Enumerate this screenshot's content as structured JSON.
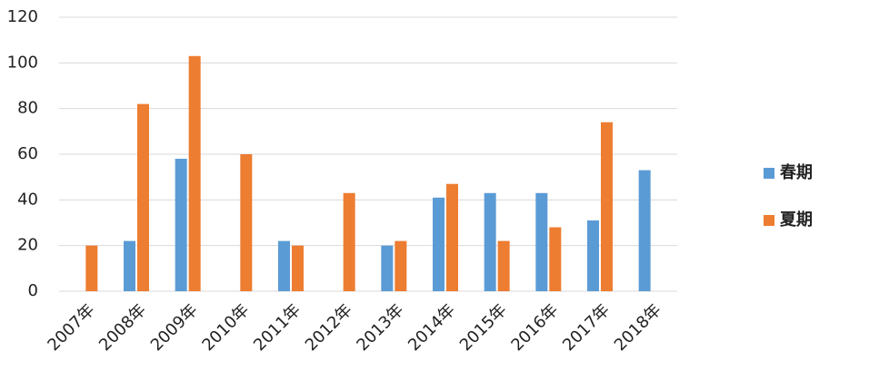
{
  "chart_data": {
    "type": "bar",
    "categories": [
      "2007年",
      "2008年",
      "2009年",
      "2010年",
      "2011年",
      "2012年",
      "2013年",
      "2014年",
      "2015年",
      "2016年",
      "2017年",
      "2018年"
    ],
    "series": [
      {
        "name": "春期",
        "color": "#5b9bd5",
        "values": [
          null,
          22,
          58,
          null,
          22,
          null,
          20,
          41,
          43,
          43,
          31,
          53
        ]
      },
      {
        "name": "夏期",
        "color": "#ed7d31",
        "values": [
          20,
          82,
          103,
          60,
          20,
          43,
          22,
          47,
          22,
          28,
          74,
          null
        ]
      }
    ],
    "ylim": [
      0,
      120
    ],
    "yticks": [
      0,
      20,
      40,
      60,
      80,
      100,
      120
    ],
    "grid": true,
    "legend": "right"
  }
}
